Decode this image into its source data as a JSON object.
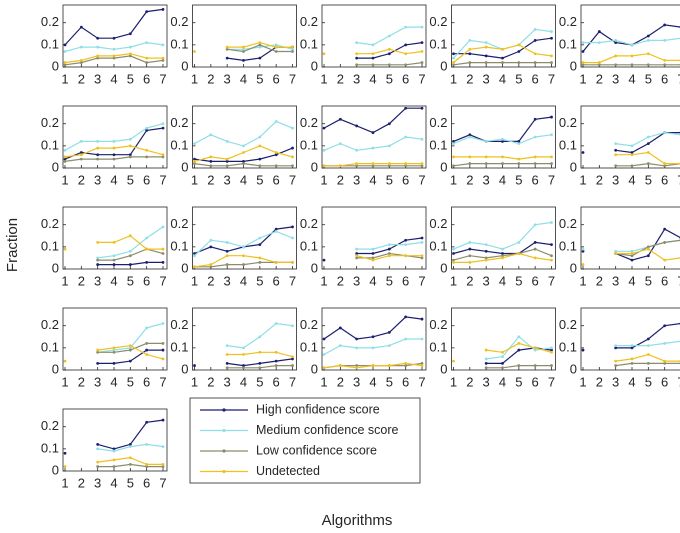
{
  "chart_data": {
    "type": "line",
    "x_label": "Algorithms",
    "y_label": "Fraction",
    "x": [
      1,
      2,
      3,
      4,
      5,
      6,
      7
    ],
    "xlim": [
      1,
      7
    ],
    "xticks": [
      1,
      2,
      3,
      4,
      5,
      6,
      7
    ],
    "ylim": [
      0,
      0.28
    ],
    "yticks": [
      0,
      0.1,
      0.2
    ],
    "series": [
      {
        "name": "High confidence score",
        "color": "#1b1f6e"
      },
      {
        "name": "Medium confidence score",
        "color": "#8fdfe6"
      },
      {
        "name": "Low confidence score",
        "color": "#8c8c6c"
      },
      {
        "name": "Undetected",
        "color": "#efc020"
      }
    ],
    "panels": [
      {
        "values": [
          [
            0.1,
            0.18,
            0.13,
            0.13,
            0.15,
            0.25,
            0.26
          ],
          [
            0.07,
            0.09,
            0.09,
            0.08,
            0.09,
            0.11,
            0.1
          ],
          [
            0.01,
            0.02,
            0.04,
            0.04,
            0.05,
            0.02,
            0.03
          ],
          [
            0.02,
            0.03,
            0.05,
            0.05,
            0.06,
            0.04,
            0.04
          ]
        ]
      },
      {
        "values": [
          [
            null,
            null,
            0.04,
            0.03,
            0.04,
            0.09,
            0.09
          ],
          [
            null,
            null,
            0.08,
            0.08,
            0.09,
            0.1,
            0.08
          ],
          [
            null,
            null,
            0.08,
            0.07,
            0.1,
            0.07,
            0.07
          ],
          [
            0.07,
            null,
            0.09,
            0.09,
            0.11,
            0.09,
            0.09
          ]
        ]
      },
      {
        "values": [
          [
            null,
            null,
            0.04,
            0.04,
            0.06,
            0.1,
            0.11
          ],
          [
            null,
            null,
            0.11,
            0.1,
            0.14,
            0.18,
            0.18
          ],
          [
            null,
            null,
            0.01,
            0.01,
            0.01,
            0.01,
            0.02
          ],
          [
            0.06,
            null,
            0.06,
            0.06,
            0.08,
            0.06,
            0.07
          ]
        ]
      },
      {
        "values": [
          [
            0.06,
            0.06,
            0.05,
            0.04,
            0.07,
            0.12,
            0.13
          ],
          [
            0.04,
            0.12,
            0.11,
            0.08,
            0.1,
            0.17,
            0.16
          ],
          [
            0.01,
            0.02,
            0.02,
            0.02,
            0.02,
            0.02,
            0.02
          ],
          [
            0.02,
            0.08,
            0.09,
            0.08,
            0.1,
            0.06,
            0.05
          ]
        ]
      },
      {
        "values": [
          [
            0.07,
            0.16,
            0.11,
            0.1,
            0.14,
            0.19,
            0.18
          ],
          [
            0.11,
            0.11,
            0.12,
            0.1,
            0.12,
            0.12,
            0.13
          ],
          [
            0.01,
            0.01,
            0.01,
            0.01,
            0.01,
            0.01,
            0.01
          ],
          [
            0.02,
            0.02,
            0.05,
            0.05,
            0.06,
            0.03,
            0.03
          ]
        ]
      },
      {
        "values": [
          [
            0.04,
            0.07,
            0.06,
            0.06,
            0.06,
            0.17,
            0.18
          ],
          [
            0.08,
            0.12,
            0.12,
            0.12,
            0.13,
            0.18,
            0.2
          ],
          [
            0.03,
            0.04,
            0.04,
            0.04,
            0.05,
            0.05,
            0.05
          ],
          [
            0.05,
            0.06,
            0.09,
            0.09,
            0.1,
            0.08,
            0.06
          ]
        ]
      },
      {
        "values": [
          [
            0.04,
            0.03,
            0.03,
            0.03,
            0.04,
            0.06,
            0.09
          ],
          [
            0.11,
            0.15,
            0.12,
            0.1,
            0.14,
            0.21,
            0.18
          ],
          [
            0.02,
            0.01,
            0.01,
            0.02,
            0.01,
            0.01,
            0.01
          ],
          [
            0.03,
            0.05,
            0.04,
            0.07,
            0.1,
            0.07,
            0.05
          ]
        ]
      },
      {
        "values": [
          [
            0.18,
            0.22,
            0.19,
            0.16,
            0.2,
            0.27,
            0.27
          ],
          [
            0.08,
            0.11,
            0.08,
            0.09,
            0.1,
            0.14,
            0.13
          ],
          [
            0.01,
            0.01,
            0.01,
            0.01,
            0.01,
            0.01,
            0.01
          ],
          [
            0.01,
            0.01,
            0.02,
            0.02,
            0.02,
            0.02,
            0.02
          ]
        ]
      },
      {
        "values": [
          [
            0.12,
            0.15,
            0.12,
            0.12,
            0.12,
            0.22,
            0.23
          ],
          [
            0.11,
            0.14,
            0.12,
            0.13,
            0.11,
            0.14,
            0.15
          ],
          [
            0.01,
            0.02,
            0.02,
            0.02,
            0.02,
            0.02,
            0.02
          ],
          [
            0.05,
            0.05,
            0.05,
            0.05,
            0.04,
            0.05,
            0.05
          ]
        ]
      },
      {
        "values": [
          [
            0.07,
            null,
            0.08,
            0.07,
            0.11,
            0.16,
            0.16
          ],
          [
            null,
            null,
            0.11,
            0.1,
            0.14,
            0.16,
            0.15
          ],
          [
            null,
            null,
            0.01,
            0.01,
            0.02,
            0.01,
            0.02
          ],
          [
            null,
            null,
            0.06,
            0.06,
            0.07,
            0.02,
            0.02
          ]
        ]
      },
      {
        "values": [
          [
            null,
            null,
            0.02,
            0.02,
            0.02,
            0.03,
            0.03
          ],
          [
            null,
            null,
            0.05,
            0.06,
            0.08,
            0.14,
            0.19
          ],
          [
            null,
            null,
            0.04,
            0.04,
            0.06,
            0.09,
            0.07
          ],
          [
            0.09,
            null,
            0.12,
            0.12,
            0.15,
            0.09,
            0.09
          ]
        ]
      },
      {
        "values": [
          [
            0.07,
            0.1,
            0.08,
            0.1,
            0.11,
            0.18,
            0.19
          ],
          [
            0.06,
            0.13,
            0.12,
            0.1,
            0.14,
            0.17,
            0.14
          ],
          [
            0.01,
            0.01,
            0.02,
            0.02,
            0.03,
            0.03,
            0.03
          ],
          [
            0.01,
            0.02,
            0.06,
            0.06,
            0.05,
            0.03,
            0.03
          ]
        ]
      },
      {
        "values": [
          [
            0.04,
            null,
            0.07,
            0.07,
            0.09,
            0.13,
            0.14
          ],
          [
            null,
            null,
            0.09,
            0.09,
            0.11,
            0.11,
            0.12
          ],
          [
            null,
            null,
            0.05,
            0.05,
            0.07,
            0.06,
            0.05
          ],
          [
            null,
            null,
            0.06,
            0.04,
            0.06,
            0.06,
            0.06
          ]
        ]
      },
      {
        "values": [
          [
            0.07,
            0.09,
            0.08,
            0.07,
            0.07,
            0.12,
            0.11
          ],
          [
            0.09,
            0.12,
            0.11,
            0.09,
            0.12,
            0.2,
            0.21
          ],
          [
            0.04,
            0.06,
            0.05,
            0.06,
            0.07,
            0.09,
            0.06
          ],
          [
            0.03,
            0.03,
            0.04,
            0.05,
            0.07,
            0.05,
            0.04
          ]
        ]
      },
      {
        "values": [
          [
            0.08,
            null,
            0.07,
            0.04,
            0.06,
            0.18,
            0.14
          ],
          [
            0.09,
            null,
            0.08,
            0.08,
            0.1,
            0.12,
            0.13
          ],
          [
            null,
            null,
            0.07,
            0.06,
            0.1,
            0.12,
            0.13
          ],
          [
            0.02,
            null,
            0.07,
            0.07,
            0.09,
            0.04,
            0.05
          ]
        ]
      },
      {
        "values": [
          [
            null,
            null,
            0.03,
            0.03,
            0.04,
            0.09,
            0.09
          ],
          [
            null,
            null,
            0.08,
            0.09,
            0.1,
            0.19,
            0.21
          ],
          [
            null,
            null,
            0.08,
            0.08,
            0.09,
            0.12,
            0.12
          ],
          [
            0.04,
            null,
            0.09,
            0.1,
            0.11,
            0.07,
            0.05
          ]
        ]
      },
      {
        "values": [
          [
            0.02,
            null,
            0.03,
            0.02,
            0.03,
            0.04,
            0.05
          ],
          [
            null,
            null,
            0.11,
            0.1,
            0.15,
            0.21,
            0.2
          ],
          [
            null,
            null,
            0.01,
            0.01,
            0.01,
            0.02,
            0.02
          ],
          [
            null,
            null,
            0.07,
            0.07,
            0.08,
            0.08,
            0.06
          ]
        ]
      },
      {
        "values": [
          [
            0.14,
            0.19,
            0.14,
            0.15,
            0.17,
            0.24,
            0.23
          ],
          [
            0.07,
            0.11,
            0.1,
            0.1,
            0.11,
            0.14,
            0.14
          ],
          [
            0.01,
            0.02,
            0.02,
            0.02,
            0.02,
            0.02,
            0.03
          ],
          [
            0.01,
            0.02,
            0.01,
            0.02,
            0.02,
            0.03,
            0.02
          ]
        ]
      },
      {
        "values": [
          [
            null,
            null,
            0.03,
            0.03,
            0.09,
            0.1,
            0.09
          ],
          [
            null,
            null,
            0.05,
            0.06,
            0.15,
            0.09,
            0.1
          ],
          [
            null,
            null,
            0.01,
            0.01,
            0.02,
            0.02,
            0.02
          ],
          [
            0.04,
            null,
            0.09,
            0.08,
            0.12,
            0.1,
            0.08
          ]
        ]
      },
      {
        "values": [
          [
            0.09,
            null,
            0.1,
            0.1,
            0.14,
            0.2,
            0.21
          ],
          [
            null,
            null,
            0.11,
            0.11,
            0.11,
            0.12,
            0.13
          ],
          [
            null,
            null,
            0.02,
            0.03,
            0.03,
            0.03,
            0.03
          ],
          [
            null,
            null,
            0.04,
            0.05,
            0.07,
            0.04,
            0.04
          ]
        ]
      },
      {
        "values": [
          [
            0.08,
            null,
            0.12,
            0.1,
            0.12,
            0.22,
            0.23
          ],
          [
            null,
            null,
            0.1,
            0.09,
            0.11,
            0.12,
            0.11
          ],
          [
            null,
            null,
            0.02,
            0.02,
            0.03,
            0.02,
            0.02
          ],
          [
            0.02,
            null,
            0.04,
            0.05,
            0.06,
            0.03,
            0.03
          ]
        ]
      }
    ]
  }
}
